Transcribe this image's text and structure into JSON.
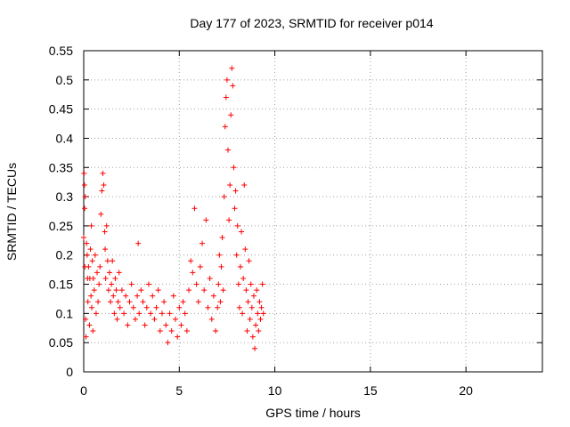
{
  "chart_data": {
    "type": "scatter",
    "title": "Day 177 of 2023, SRMTID for receiver p014",
    "xlabel": "GPS time / hours",
    "ylabel": "SRMTID / TECUs",
    "xlim": [
      0,
      24
    ],
    "ylim": [
      0,
      0.55
    ],
    "xticks": [
      0,
      5,
      10,
      15,
      20
    ],
    "yticks": [
      0,
      0.05,
      0.1,
      0.15,
      0.2,
      0.25,
      0.3,
      0.35,
      0.4,
      0.45,
      0.5,
      0.55
    ],
    "grid": true,
    "marker": "plus",
    "color": "#ff0000",
    "series": [
      {
        "name": "SRMTID",
        "x": [
          0.0,
          0.02,
          0.04,
          0.05,
          0.06,
          0.08,
          0.1,
          0.12,
          0.15,
          0.18,
          0.2,
          0.22,
          0.25,
          0.3,
          0.32,
          0.35,
          0.38,
          0.4,
          0.42,
          0.45,
          0.48,
          0.5,
          0.55,
          0.6,
          0.65,
          0.7,
          0.75,
          0.8,
          0.85,
          0.9,
          0.95,
          1.0,
          1.05,
          1.1,
          1.12,
          1.15,
          1.2,
          1.25,
          1.3,
          1.35,
          1.4,
          1.45,
          1.5,
          1.55,
          1.6,
          1.65,
          1.7,
          1.75,
          1.8,
          1.85,
          1.9,
          2.0,
          2.1,
          2.2,
          2.3,
          2.4,
          2.5,
          2.6,
          2.7,
          2.8,
          2.85,
          2.9,
          3.0,
          3.1,
          3.2,
          3.3,
          3.4,
          3.5,
          3.6,
          3.7,
          3.8,
          3.9,
          4.0,
          4.1,
          4.2,
          4.3,
          4.4,
          4.5,
          4.6,
          4.7,
          4.8,
          4.9,
          5.0,
          5.1,
          5.2,
          5.3,
          5.4,
          5.5,
          5.6,
          5.7,
          5.8,
          5.9,
          6.0,
          6.1,
          6.2,
          6.3,
          6.4,
          6.5,
          6.6,
          6.7,
          6.8,
          6.9,
          7.0,
          7.05,
          7.1,
          7.15,
          7.2,
          7.25,
          7.3,
          7.35,
          7.4,
          7.45,
          7.5,
          7.55,
          7.6,
          7.65,
          7.7,
          7.75,
          7.8,
          7.85,
          7.9,
          7.95,
          8.0,
          8.05,
          8.1,
          8.15,
          8.2,
          8.25,
          8.3,
          8.35,
          8.4,
          8.45,
          8.5,
          8.55,
          8.6,
          8.65,
          8.7,
          8.75,
          8.8,
          8.85,
          8.9,
          8.95,
          9.0,
          9.05,
          9.1,
          9.15,
          9.2,
          9.25,
          9.3,
          9.35,
          9.4
        ],
        "y": [
          0.23,
          0.34,
          0.32,
          0.28,
          0.18,
          0.3,
          0.09,
          0.06,
          0.22,
          0.2,
          0.16,
          0.12,
          0.18,
          0.08,
          0.16,
          0.21,
          0.13,
          0.25,
          0.11,
          0.19,
          0.07,
          0.16,
          0.14,
          0.2,
          0.1,
          0.17,
          0.12,
          0.15,
          0.18,
          0.27,
          0.31,
          0.34,
          0.32,
          0.24,
          0.21,
          0.16,
          0.25,
          0.19,
          0.14,
          0.17,
          0.12,
          0.15,
          0.19,
          0.13,
          0.1,
          0.16,
          0.14,
          0.09,
          0.12,
          0.17,
          0.11,
          0.14,
          0.1,
          0.13,
          0.08,
          0.12,
          0.15,
          0.11,
          0.09,
          0.13,
          0.22,
          0.1,
          0.14,
          0.12,
          0.08,
          0.11,
          0.15,
          0.1,
          0.13,
          0.09,
          0.11,
          0.14,
          0.07,
          0.1,
          0.12,
          0.08,
          0.05,
          0.1,
          0.07,
          0.13,
          0.09,
          0.06,
          0.11,
          0.08,
          0.12,
          0.1,
          0.07,
          0.14,
          0.19,
          0.17,
          0.28,
          0.15,
          0.12,
          0.18,
          0.22,
          0.14,
          0.26,
          0.11,
          0.16,
          0.09,
          0.13,
          0.07,
          0.11,
          0.15,
          0.2,
          0.12,
          0.18,
          0.23,
          0.14,
          0.3,
          0.42,
          0.47,
          0.5,
          0.38,
          0.26,
          0.32,
          0.44,
          0.52,
          0.49,
          0.35,
          0.28,
          0.31,
          0.2,
          0.25,
          0.15,
          0.11,
          0.18,
          0.24,
          0.1,
          0.16,
          0.32,
          0.21,
          0.14,
          0.07,
          0.12,
          0.19,
          0.09,
          0.15,
          0.11,
          0.06,
          0.13,
          0.04,
          0.08,
          0.14,
          0.1,
          0.07,
          0.12,
          0.09,
          0.11,
          0.15,
          0.1
        ]
      }
    ]
  }
}
